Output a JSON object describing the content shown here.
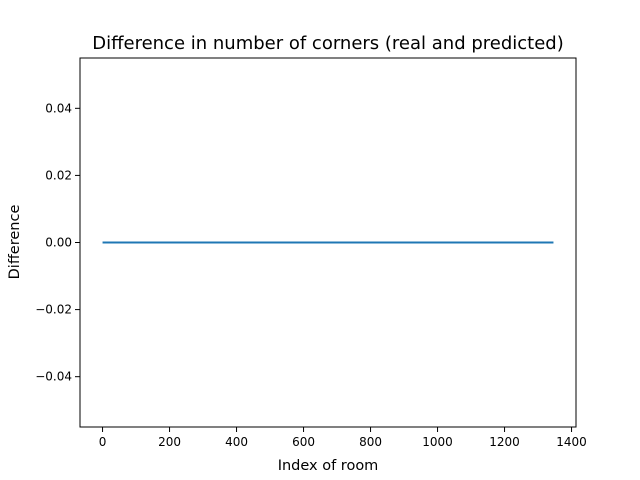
{
  "chart_data": {
    "type": "line",
    "title": "Difference in number of corners (real and predicted)",
    "xlabel": "Index of room",
    "ylabel": "Difference",
    "xlim": [
      -67.3,
      1413.3
    ],
    "ylim": [
      -0.055,
      0.055
    ],
    "x_ticks": [
      0,
      200,
      400,
      600,
      800,
      1000,
      1200,
      1400
    ],
    "x_tick_labels": [
      "0",
      "200",
      "400",
      "600",
      "800",
      "1000",
      "1200",
      "1400"
    ],
    "y_ticks": [
      -0.04,
      -0.02,
      0.0,
      0.02,
      0.04
    ],
    "y_tick_labels": [
      "−0.04",
      "−0.02",
      "0.00",
      "0.02",
      "0.04"
    ],
    "grid": false,
    "series": [
      {
        "color": "#1f77b4",
        "x": [
          0,
          1346
        ],
        "y": [
          0,
          0
        ]
      }
    ]
  }
}
